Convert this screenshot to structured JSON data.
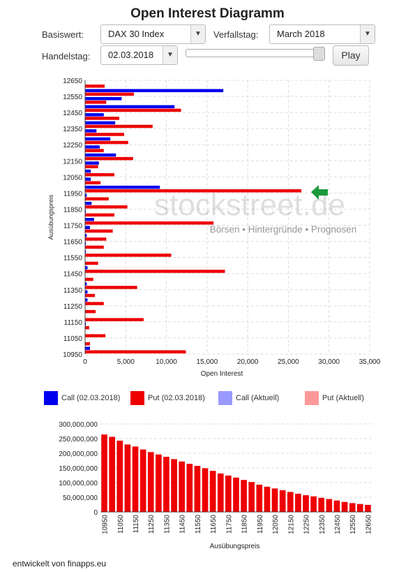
{
  "title": "Open Interest Diagramm",
  "controls": {
    "basiswert_label": "Basiswert:",
    "basiswert_value": "DAX 30 Index",
    "verfallstag_label": "Verfallstag:",
    "verfallstag_value": "March 2018",
    "handelstag_label": "Handelstag:",
    "handelstag_value": "02.03.2018",
    "play_label": "Play"
  },
  "watermark": {
    "brand": "stockstreet.de",
    "tagline": "Börsen • Hintergründe • Prognosen"
  },
  "legend": [
    {
      "label": "Call (02.03.2018)",
      "color": "#0000ee"
    },
    {
      "label": "Put (02.03.2018)",
      "color": "#ee0000"
    },
    {
      "label": "Call (Aktuell)",
      "color": "#9999ff"
    },
    {
      "label": "Put (Aktuell)",
      "color": "#ff9999"
    }
  ],
  "footer": "entwickelt von finapps.eu",
  "chart_data": [
    {
      "type": "bar",
      "orientation": "horizontal",
      "xlabel": "Open Interest",
      "ylabel": "Ausübungspreis",
      "xlim": [
        0,
        35000
      ],
      "xticks": [
        "0",
        "5,000",
        "10,000",
        "15,000",
        "20,000",
        "25,000",
        "30,000",
        "35,000"
      ],
      "ylim": [
        10950,
        12650
      ],
      "yticks": [
        "12650",
        "12550",
        "12450",
        "12350",
        "12250",
        "12150",
        "12050",
        "11950",
        "11850",
        "11750",
        "11650",
        "11550",
        "11450",
        "11350",
        "11250",
        "11150",
        "11050",
        "10950"
      ],
      "grid": true,
      "categories": [
        12650,
        12600,
        12550,
        12500,
        12450,
        12400,
        12350,
        12300,
        12250,
        12200,
        12150,
        12100,
        12050,
        12000,
        11950,
        11900,
        11850,
        11800,
        11750,
        11700,
        11650,
        11600,
        11550,
        11500,
        11450,
        11400,
        11350,
        11300,
        11250,
        11200,
        11150,
        11100,
        11050,
        11000
      ],
      "series": [
        {
          "name": "Call (02.03.2018)",
          "color": "#0000ee",
          "values": [
            0,
            17000,
            4500,
            11000,
            2300,
            3700,
            1400,
            3100,
            1800,
            3800,
            1700,
            700,
            700,
            9200,
            200,
            800,
            100,
            1100,
            600,
            200,
            100,
            100,
            0,
            300,
            0,
            200,
            300,
            300,
            0,
            0,
            100,
            0,
            0,
            600
          ]
        },
        {
          "name": "Put (02.03.2018)",
          "color": "#ee0000",
          "values": [
            2400,
            6000,
            2600,
            11800,
            4200,
            8300,
            4800,
            5300,
            2300,
            5900,
            1600,
            3600,
            1900,
            26600,
            2900,
            5200,
            3600,
            15800,
            3400,
            2600,
            2300,
            10600,
            1600,
            17200,
            1000,
            6400,
            1200,
            2300,
            1300,
            7200,
            500,
            2500,
            600,
            12400
          ]
        }
      ]
    },
    {
      "type": "bar",
      "stacked": true,
      "xlabel": "Ausübungspreis",
      "ylabel": "",
      "ylim": [
        0,
        300000000
      ],
      "yticks": [
        "300,000,000",
        "250,000,000",
        "200,000,000",
        "150,000,000",
        "100,000,000",
        "50,000,000",
        "0"
      ],
      "grid": true,
      "xticklabels": [
        "10950",
        "11050",
        "11150",
        "11250",
        "11350",
        "11450",
        "11550",
        "11650",
        "11750",
        "11850",
        "11950",
        "12050",
        "12150",
        "12250",
        "12350",
        "12450",
        "12550",
        "12650"
      ],
      "categories": [
        10950,
        11000,
        11050,
        11100,
        11150,
        11200,
        11250,
        11300,
        11350,
        11400,
        11450,
        11500,
        11550,
        11600,
        11650,
        11700,
        11750,
        11800,
        11850,
        11900,
        11950,
        12000,
        12050,
        12100,
        12150,
        12200,
        12250,
        12300,
        12350,
        12400,
        12450,
        12500,
        12550,
        12600,
        12650
      ],
      "series": [
        {
          "name": "Put",
          "color": "#ee0000",
          "values": [
            264000000,
            256000000,
            243000000,
            230000000,
            223000000,
            213000000,
            204000000,
            196000000,
            188000000,
            180000000,
            172000000,
            164000000,
            157000000,
            149000000,
            140000000,
            131000000,
            124000000,
            117000000,
            109000000,
            102000000,
            93000000,
            86000000,
            80000000,
            74000000,
            68000000,
            62000000,
            57000000,
            53000000,
            48000000,
            44000000,
            39000000,
            34000000,
            30000000,
            27000000,
            24000000
          ]
        },
        {
          "name": "Call",
          "color": "#0000ee",
          "values": [
            0,
            2000,
            5000,
            9000,
            9000,
            8000,
            7000,
            7000,
            7000,
            7000,
            7000,
            7000,
            7000,
            7000,
            7000,
            7000,
            7000,
            7000,
            7000,
            7000,
            7000,
            7000,
            8000,
            8000,
            8000,
            9000,
            9000,
            9000,
            10000,
            10000,
            10000,
            11000,
            17000,
            19000,
            20000
          ]
        }
      ]
    }
  ]
}
